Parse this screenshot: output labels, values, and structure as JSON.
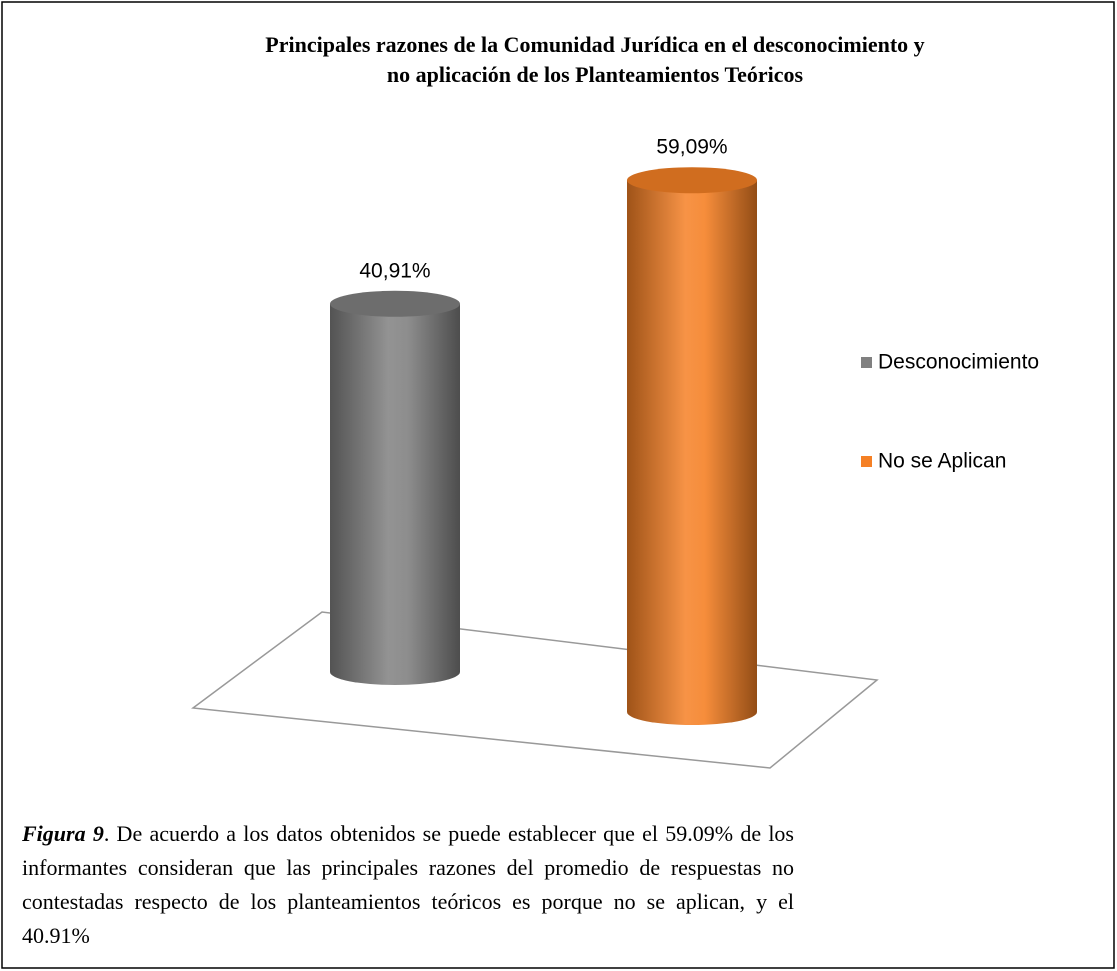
{
  "chart_data": {
    "type": "cylinder",
    "title": "Principales razones de la Comunidad Jurídica en el desconocimiento y no aplicación de los Planteamientos Teóricos",
    "categories": [
      null
    ],
    "series": [
      {
        "name": "Desconocimiento",
        "color": "#808080",
        "values": [
          40.91
        ],
        "value_labels": [
          "40,91%"
        ]
      },
      {
        "name": "No se Aplican",
        "color": "#f58025",
        "values": [
          59.09
        ],
        "value_labels": [
          "59,09%"
        ]
      }
    ],
    "legend": "right"
  },
  "caption": {
    "label": "Figura 9",
    "text": ".  De acuerdo a los datos obtenidos se puede establecer que el 59.09% de los informantes consideran que las principales razones del promedio de respuestas no contestadas respecto de los planteamientos teóricos es porque no se aplican, y el 40.91%"
  }
}
